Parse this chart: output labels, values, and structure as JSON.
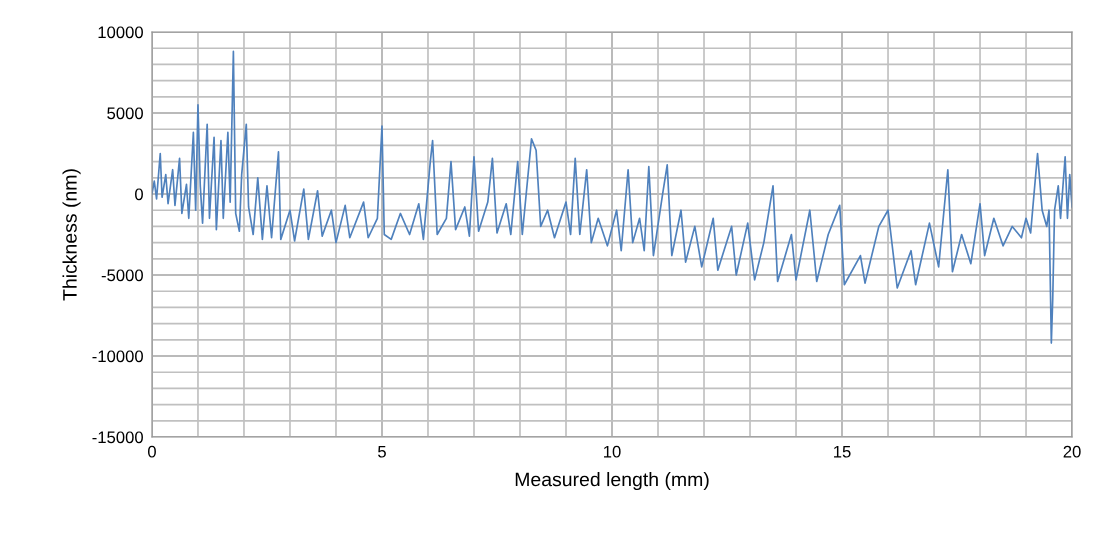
{
  "chart_data": {
    "type": "line",
    "xlabel": "Measured length (mm)",
    "ylabel": "Thickness (nm)",
    "xlim": [
      0,
      20
    ],
    "ylim": [
      -15000,
      10000
    ],
    "xticks": [
      0,
      {
        "value": 1,
        "label": null
      },
      {
        "value": 2,
        "label": null
      },
      {
        "value": 3,
        "label": null
      },
      {
        "value": 4,
        "label": null
      },
      5,
      {
        "value": 6,
        "label": null
      },
      {
        "value": 7,
        "label": null
      },
      {
        "value": 8,
        "label": null
      },
      {
        "value": 9,
        "label": null
      },
      10,
      {
        "value": 11,
        "label": null
      },
      {
        "value": 12,
        "label": null
      },
      {
        "value": 13,
        "label": null
      },
      {
        "value": 14,
        "label": null
      },
      15,
      {
        "value": 16,
        "label": null
      },
      {
        "value": 17,
        "label": null
      },
      {
        "value": 18,
        "label": null
      },
      {
        "value": 19,
        "label": null
      },
      20
    ],
    "yticks": [
      -15000,
      {
        "value": -14000,
        "label": null
      },
      {
        "value": -13000,
        "label": null
      },
      {
        "value": -12000,
        "label": null
      },
      {
        "value": -11000,
        "label": null
      },
      -10000,
      {
        "value": -9000,
        "label": null
      },
      {
        "value": -8000,
        "label": null
      },
      {
        "value": -7000,
        "label": null
      },
      {
        "value": -6000,
        "label": null
      },
      -5000,
      {
        "value": -4000,
        "label": null
      },
      {
        "value": -3000,
        "label": null
      },
      {
        "value": -2000,
        "label": null
      },
      {
        "value": -1000,
        "label": null
      },
      0,
      {
        "value": 1000,
        "label": null
      },
      {
        "value": 2000,
        "label": null
      },
      {
        "value": 3000,
        "label": null
      },
      {
        "value": 4000,
        "label": null
      },
      5000,
      {
        "value": 6000,
        "label": null
      },
      {
        "value": 7000,
        "label": null
      },
      {
        "value": 8000,
        "label": null
      },
      {
        "value": 9000,
        "label": null
      },
      10000
    ],
    "grid": true,
    "legend": false,
    "series": [
      {
        "color": "#4f81bd",
        "x": [
          0,
          0.05,
          0.1,
          0.18,
          0.22,
          0.3,
          0.35,
          0.45,
          0.5,
          0.6,
          0.65,
          0.75,
          0.8,
          0.9,
          0.95,
          1.0,
          1.05,
          1.1,
          1.2,
          1.25,
          1.35,
          1.4,
          1.5,
          1.55,
          1.65,
          1.7,
          1.77,
          1.82,
          1.9,
          1.95,
          2.05,
          2.1,
          2.2,
          2.3,
          2.4,
          2.5,
          2.6,
          2.75,
          2.8,
          3.0,
          3.1,
          3.3,
          3.4,
          3.6,
          3.7,
          3.9,
          4.0,
          4.2,
          4.3,
          4.6,
          4.7,
          4.9,
          5.0,
          5.05,
          5.2,
          5.4,
          5.6,
          5.8,
          5.9,
          6.05,
          6.1,
          6.2,
          6.4,
          6.5,
          6.6,
          6.8,
          6.9,
          7.0,
          7.1,
          7.3,
          7.4,
          7.5,
          7.7,
          7.8,
          7.95,
          8.05,
          8.25,
          8.35,
          8.45,
          8.6,
          8.75,
          9.0,
          9.1,
          9.2,
          9.3,
          9.45,
          9.55,
          9.7,
          9.9,
          10.1,
          10.2,
          10.35,
          10.45,
          10.6,
          10.7,
          10.8,
          10.9,
          11.1,
          11.2,
          11.3,
          11.5,
          11.6,
          11.8,
          11.95,
          12.2,
          12.3,
          12.6,
          12.7,
          12.95,
          13.1,
          13.3,
          13.5,
          13.6,
          13.9,
          14.0,
          14.3,
          14.45,
          14.7,
          14.95,
          15.05,
          15.4,
          15.5,
          15.8,
          16.0,
          16.2,
          16.5,
          16.6,
          16.9,
          17.1,
          17.3,
          17.4,
          17.6,
          17.8,
          18.0,
          18.1,
          18.3,
          18.5,
          18.7,
          18.9,
          19.0,
          19.1,
          19.25,
          19.35,
          19.45,
          19.5,
          19.55,
          19.58,
          19.62,
          19.7,
          19.75,
          19.85,
          19.9,
          19.95,
          20.0
        ],
        "values": [
          0,
          800,
          -300,
          2500,
          -200,
          1200,
          -600,
          1500,
          -700,
          2200,
          -1200,
          600,
          -1500,
          3800,
          -1000,
          5500,
          500,
          -1800,
          4300,
          -1500,
          3500,
          -2200,
          3300,
          -1500,
          3800,
          -500,
          8800,
          -1200,
          -2300,
          1200,
          4300,
          -800,
          -2500,
          1000,
          -2800,
          500,
          -2700,
          2600,
          -2800,
          -1000,
          -2900,
          300,
          -2800,
          200,
          -2600,
          -1000,
          -3000,
          -700,
          -2700,
          -500,
          -2700,
          -1500,
          4200,
          -2500,
          -2800,
          -1200,
          -2500,
          -600,
          -2800,
          2000,
          3300,
          -2500,
          -1500,
          2000,
          -2200,
          -800,
          -2600,
          2300,
          -2300,
          -500,
          2200,
          -2400,
          -600,
          -2500,
          2000,
          -2500,
          3400,
          2700,
          -2000,
          -1000,
          -2700,
          -500,
          -2500,
          2200,
          -2500,
          1500,
          -3000,
          -1500,
          -3200,
          -1000,
          -3500,
          1500,
          -3000,
          -1500,
          -3500,
          1700,
          -3800,
          0,
          1800,
          -3800,
          -1000,
          -4200,
          -2000,
          -4500,
          -1500,
          -4700,
          -2000,
          -5000,
          -1800,
          -5300,
          -3000,
          500,
          -5400,
          -2500,
          -5300,
          -1000,
          -5400,
          -2500,
          -700,
          -5600,
          -3800,
          -5500,
          -2000,
          -1000,
          -5800,
          -3500,
          -5600,
          -1800,
          -4500,
          1500,
          -4800,
          -2500,
          -4300,
          -600,
          -3800,
          -1500,
          -3200,
          -2000,
          -2700,
          -1500,
          -2400,
          2500,
          -1000,
          -2000,
          -1000,
          -9200,
          -6500,
          -1000,
          500,
          -1500,
          2300,
          -1500,
          1200,
          -800
        ]
      }
    ]
  }
}
